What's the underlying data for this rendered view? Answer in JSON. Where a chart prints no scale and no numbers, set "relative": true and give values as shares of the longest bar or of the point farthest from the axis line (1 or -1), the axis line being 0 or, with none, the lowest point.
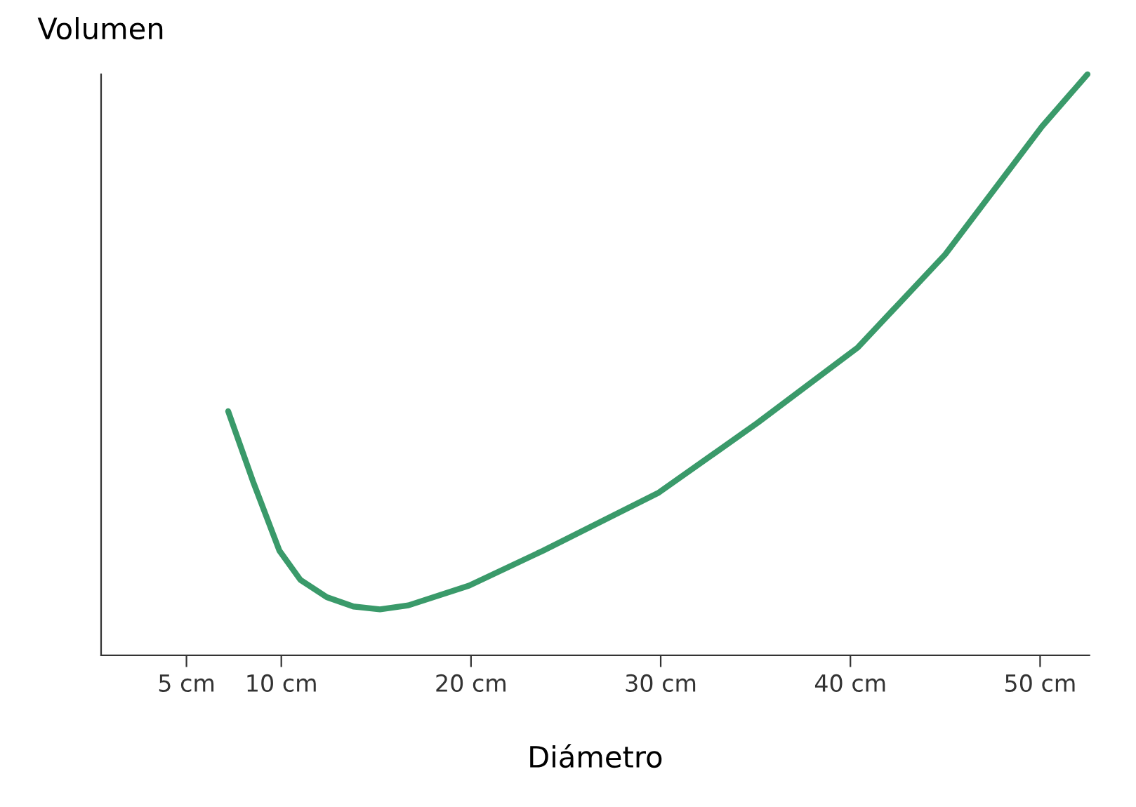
{
  "chart_data": {
    "type": "line",
    "relative": true,
    "xlabel": "Diámetro",
    "ylabel": "Volumen",
    "tick_labels": "x",
    "grid": false,
    "legend": false,
    "marker": "none",
    "line_style": "solid",
    "xlim": [
      0.5,
      52.6
    ],
    "xticks": [
      {
        "value": 5,
        "label": "5 cm"
      },
      {
        "value": 10,
        "label": "10 cm"
      },
      {
        "value": 20,
        "label": "20 cm"
      },
      {
        "value": 30,
        "label": "30 cm"
      },
      {
        "value": 40,
        "label": "40 cm"
      },
      {
        "value": 50,
        "label": "50 cm"
      }
    ],
    "series": [
      {
        "color": "#3a9a6a",
        "x": [
          7.2,
          8.5,
          9.9,
          11.0,
          12.4,
          13.8,
          15.2,
          16.7,
          19.9,
          23.8,
          29.9,
          35.1,
          40.4,
          45.0,
          50.1,
          52.5
        ],
        "values": [
          0.42,
          0.3,
          0.18,
          0.13,
          0.1,
          0.084,
          0.079,
          0.086,
          0.12,
          0.18,
          0.28,
          0.4,
          0.53,
          0.69,
          0.91,
          1.0
        ]
      }
    ]
  }
}
